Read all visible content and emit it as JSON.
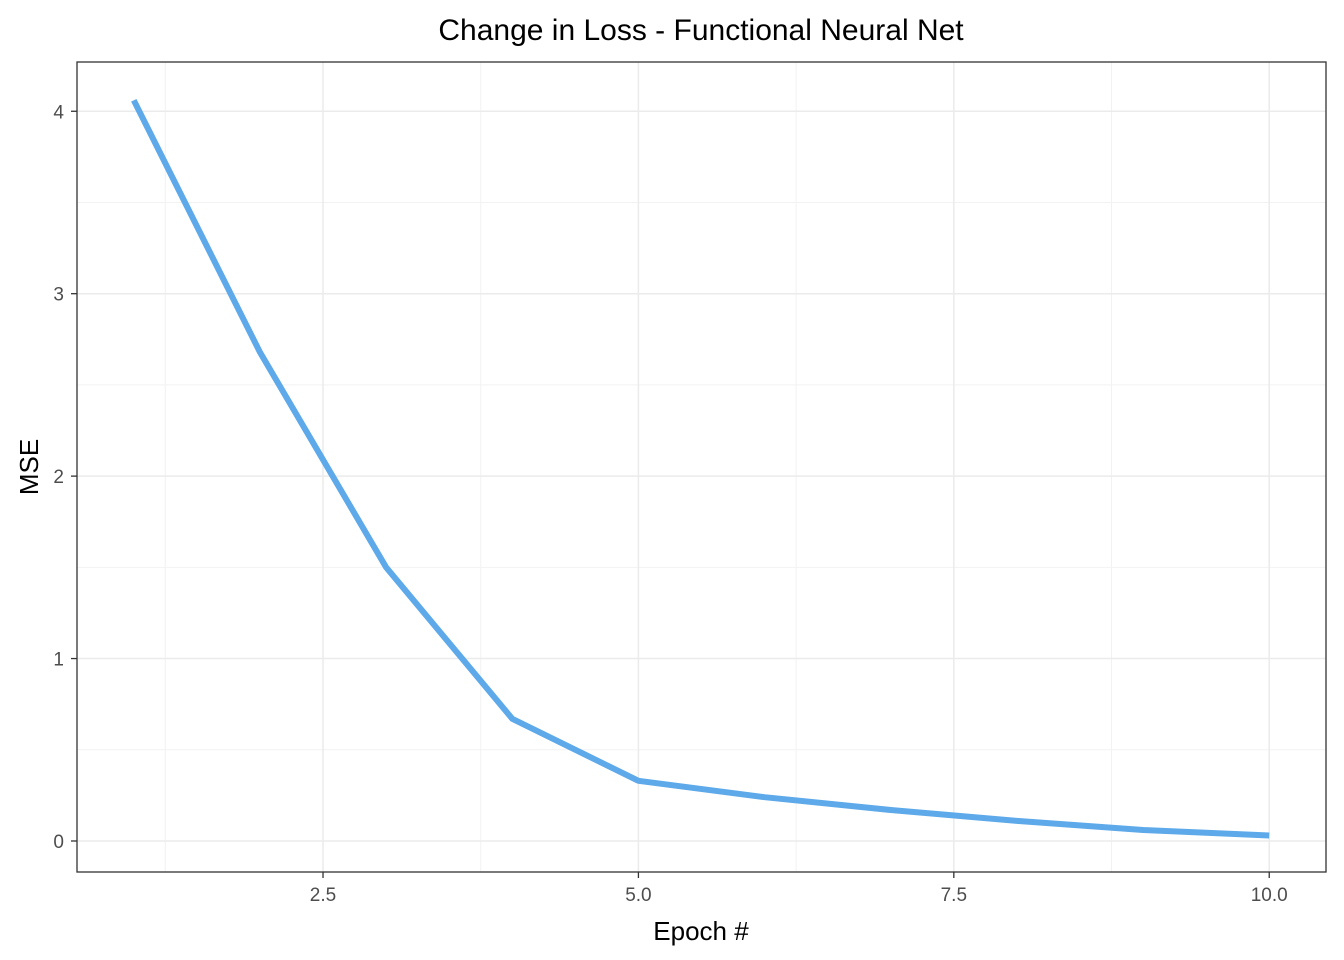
{
  "chart_data": {
    "type": "line",
    "title": "Change in Loss - Functional Neural Net",
    "xlabel": "Epoch #",
    "ylabel": "MSE",
    "xlim": [
      0.55,
      10.45
    ],
    "ylim": [
      -0.17,
      4.27
    ],
    "x_ticks": [
      {
        "value": 2.5,
        "label": "2.5"
      },
      {
        "value": 5.0,
        "label": "5.0"
      },
      {
        "value": 7.5,
        "label": "7.5"
      },
      {
        "value": 10.0,
        "label": "10.0"
      }
    ],
    "x_minor": [
      1.25,
      3.75,
      6.25,
      8.75
    ],
    "y_ticks": [
      {
        "value": 0,
        "label": "0"
      },
      {
        "value": 1,
        "label": "1"
      },
      {
        "value": 2,
        "label": "2"
      },
      {
        "value": 3,
        "label": "3"
      },
      {
        "value": 4,
        "label": "4"
      }
    ],
    "y_minor": [
      0.5,
      1.5,
      2.5,
      3.5
    ],
    "grid": true,
    "series": [
      {
        "name": "MSE",
        "color": "#5DA9E9",
        "x": [
          1,
          2,
          3,
          4,
          5,
          6,
          7,
          8,
          9,
          10
        ],
        "y": [
          4.06,
          2.68,
          1.5,
          0.67,
          0.33,
          0.24,
          0.17,
          0.11,
          0.06,
          0.03
        ]
      }
    ]
  }
}
